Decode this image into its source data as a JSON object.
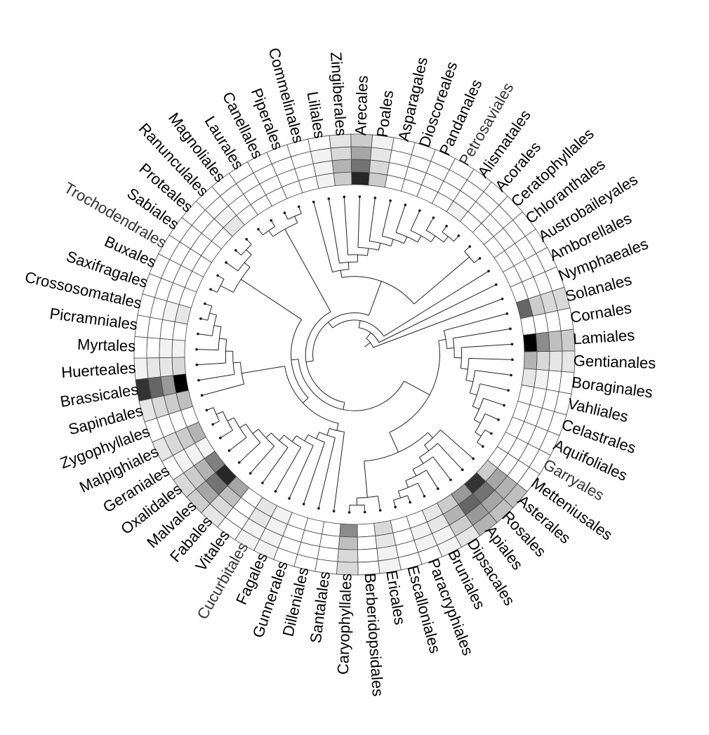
{
  "chart_data": {
    "type": "heatmap",
    "layout": "circular",
    "title": "",
    "rings": 4,
    "grid": true,
    "tips": [
      {
        "label": "Solanales",
        "style": "normal",
        "v": [
          0.6,
          0.2,
          0.15,
          0.15
        ]
      },
      {
        "label": "Cornales",
        "style": "normal",
        "v": [
          0.0,
          0.0,
          0.0,
          0.0
        ]
      },
      {
        "label": "Lamiales",
        "style": "normal",
        "v": [
          1.0,
          0.45,
          0.25,
          0.2
        ]
      },
      {
        "label": "Gentianales",
        "style": "normal",
        "v": [
          0.3,
          0.15,
          0.1,
          0.1
        ]
      },
      {
        "label": "Boraginales",
        "style": "normal",
        "v": [
          0.1,
          0.05,
          0.0,
          0.0
        ]
      },
      {
        "label": "Vahliales",
        "style": "normal",
        "v": [
          0.0,
          0.0,
          0.0,
          0.0
        ]
      },
      {
        "label": "Celastrales",
        "style": "normal",
        "v": [
          0.0,
          0.0,
          0.0,
          0.0
        ]
      },
      {
        "label": "Aquifoliales",
        "style": "normal",
        "v": [
          0.0,
          0.0,
          0.0,
          0.0
        ]
      },
      {
        "label": "Garryales",
        "style": "light",
        "v": [
          0.0,
          0.0,
          0.0,
          0.0
        ]
      },
      {
        "label": "Metteniusales",
        "style": "normal",
        "v": [
          0.0,
          0.0,
          0.0,
          0.0
        ]
      },
      {
        "label": "Asterales",
        "style": "normal",
        "v": [
          0.2,
          0.35,
          0.3,
          0.25
        ]
      },
      {
        "label": "Rosales",
        "style": "normal",
        "v": [
          0.8,
          0.55,
          0.35,
          0.25
        ]
      },
      {
        "label": "Apiales",
        "style": "normal",
        "v": [
          0.4,
          0.6,
          0.4,
          0.3
        ]
      },
      {
        "label": "Dipsacales",
        "style": "normal",
        "v": [
          0.2,
          0.3,
          0.2,
          0.1
        ]
      },
      {
        "label": "Bruniales",
        "style": "normal",
        "v": [
          0.1,
          0.1,
          0.05,
          0.05
        ]
      },
      {
        "label": "Paracryphiales",
        "style": "normal",
        "v": [
          0.0,
          0.05,
          0.05,
          0.0
        ]
      },
      {
        "label": "Escalloniales",
        "style": "normal",
        "v": [
          0.0,
          0.0,
          0.0,
          0.0
        ]
      },
      {
        "label": "Ericales",
        "style": "normal",
        "v": [
          0.15,
          0.1,
          0.05,
          0.05
        ]
      },
      {
        "label": "Berberidopsidales",
        "style": "normal",
        "v": [
          0.0,
          0.0,
          0.0,
          0.0
        ]
      },
      {
        "label": "Caryophyllales",
        "style": "normal",
        "v": [
          0.45,
          0.25,
          0.15,
          0.15
        ]
      },
      {
        "label": "Santalales",
        "style": "normal",
        "v": [
          0.0,
          0.0,
          0.0,
          0.0
        ]
      },
      {
        "label": "Dilleniales",
        "style": "normal",
        "v": [
          0.0,
          0.0,
          0.0,
          0.0
        ]
      },
      {
        "label": "Gunnerales",
        "style": "normal",
        "v": [
          0.0,
          0.0,
          0.0,
          0.0
        ]
      },
      {
        "label": "Fagales",
        "style": "normal",
        "v": [
          0.05,
          0.05,
          0.05,
          0.05
        ]
      },
      {
        "label": "Cucurbitales",
        "style": "light",
        "v": [
          0.1,
          0.1,
          0.05,
          0.05
        ]
      },
      {
        "label": "Vitales",
        "style": "normal",
        "v": [
          0.0,
          0.0,
          0.0,
          0.0
        ]
      },
      {
        "label": "Fabales",
        "style": "normal",
        "v": [
          0.35,
          0.25,
          0.15,
          0.1
        ]
      },
      {
        "label": "Malvales",
        "style": "normal",
        "v": [
          0.85,
          0.55,
          0.35,
          0.2
        ]
      },
      {
        "label": "Oxalidales",
        "style": "normal",
        "v": [
          0.5,
          0.3,
          0.2,
          0.15
        ]
      },
      {
        "label": "Geraniales",
        "style": "normal",
        "v": [
          0.05,
          0.05,
          0.05,
          0.0
        ]
      },
      {
        "label": "Malpighiales",
        "style": "normal",
        "v": [
          0.3,
          0.2,
          0.15,
          0.1
        ]
      },
      {
        "label": "Zygophyllales",
        "style": "normal",
        "v": [
          0.0,
          0.0,
          0.0,
          0.0
        ]
      },
      {
        "label": "Sapindales",
        "style": "normal",
        "v": [
          0.25,
          0.2,
          0.15,
          0.1
        ]
      },
      {
        "label": "Brassicales",
        "style": "normal",
        "v": [
          1.0,
          0.4,
          0.6,
          0.8
        ]
      },
      {
        "label": "Huerteales",
        "style": "normal",
        "v": [
          0.15,
          0.1,
          0.1,
          0.05
        ]
      },
      {
        "label": "Myrtales",
        "style": "normal",
        "v": [
          0.05,
          0.05,
          0.0,
          0.0
        ]
      },
      {
        "label": "Picramniales",
        "style": "normal",
        "v": [
          0.0,
          0.0,
          0.0,
          0.0
        ]
      },
      {
        "label": "Crossosomatales",
        "style": "normal",
        "v": [
          0.1,
          0.05,
          0.0,
          0.0
        ]
      },
      {
        "label": "Saxifragales",
        "style": "normal",
        "v": [
          0.0,
          0.0,
          0.0,
          0.0
        ]
      },
      {
        "label": "Buxales",
        "style": "normal",
        "v": [
          0.0,
          0.0,
          0.0,
          0.0
        ]
      },
      {
        "label": "Trochodendrales",
        "style": "light",
        "v": [
          0.0,
          0.0,
          0.0,
          0.0
        ]
      },
      {
        "label": "Sabiales",
        "style": "normal",
        "v": [
          0.0,
          0.0,
          0.0,
          0.0
        ]
      },
      {
        "label": "Proteales",
        "style": "normal",
        "v": [
          0.0,
          0.0,
          0.0,
          0.0
        ]
      },
      {
        "label": "Ranunculales",
        "style": "normal",
        "v": [
          0.1,
          0.05,
          0.0,
          0.0
        ]
      },
      {
        "label": "Magnoliales",
        "style": "normal",
        "v": [
          0.0,
          0.0,
          0.0,
          0.0
        ]
      },
      {
        "label": "Laurales",
        "style": "normal",
        "v": [
          0.0,
          0.0,
          0.0,
          0.0
        ]
      },
      {
        "label": "Canellales",
        "style": "normal",
        "v": [
          0.0,
          0.0,
          0.0,
          0.0
        ]
      },
      {
        "label": "Piperales",
        "style": "normal",
        "v": [
          0.0,
          0.0,
          0.0,
          0.0
        ]
      },
      {
        "label": "Commelinales",
        "style": "normal",
        "v": [
          0.0,
          0.0,
          0.0,
          0.0
        ]
      },
      {
        "label": "Liliales",
        "style": "normal",
        "v": [
          0.05,
          0.05,
          0.05,
          0.0
        ]
      },
      {
        "label": "Zingiberales",
        "style": "normal",
        "v": [
          0.2,
          0.3,
          0.15,
          0.1
        ]
      },
      {
        "label": "Arecales",
        "style": "normal",
        "v": [
          0.85,
          0.55,
          0.35,
          0.2
        ]
      },
      {
        "label": "Poales",
        "style": "normal",
        "v": [
          0.2,
          0.15,
          0.1,
          0.05
        ]
      },
      {
        "label": "Asparagales",
        "style": "normal",
        "v": [
          0.0,
          0.0,
          0.0,
          0.0
        ]
      },
      {
        "label": "Dioscoreales",
        "style": "normal",
        "v": [
          0.0,
          0.0,
          0.0,
          0.0
        ]
      },
      {
        "label": "Pandanales",
        "style": "normal",
        "v": [
          0.0,
          0.0,
          0.0,
          0.0
        ]
      },
      {
        "label": "Petrosaviales",
        "style": "light",
        "v": [
          0.0,
          0.0,
          0.0,
          0.0
        ]
      },
      {
        "label": "Alismatales",
        "style": "normal",
        "v": [
          0.05,
          0.0,
          0.0,
          0.0
        ]
      },
      {
        "label": "Acorales",
        "style": "normal",
        "v": [
          0.0,
          0.0,
          0.0,
          0.0
        ]
      },
      {
        "label": "Ceratophyllales",
        "style": "normal",
        "v": [
          0.0,
          0.0,
          0.0,
          0.0
        ]
      },
      {
        "label": "Chloranthales",
        "style": "normal",
        "v": [
          0.0,
          0.0,
          0.0,
          0.0
        ]
      },
      {
        "label": "Austrobaileyales",
        "style": "normal",
        "v": [
          0.0,
          0.0,
          0.0,
          0.0
        ]
      },
      {
        "label": "Amborellales",
        "style": "normal",
        "v": [
          0.0,
          0.0,
          0.0,
          0.0
        ]
      },
      {
        "label": "Nymphaeales",
        "style": "normal",
        "v": [
          0.0,
          0.0,
          0.0,
          0.0
        ]
      }
    ]
  },
  "colors": {
    "label_normal": "#000000",
    "label_light": "#333333",
    "cell_low": "#ffffff",
    "cell_high": "#000000",
    "grid": "#444444",
    "tree": "#222222"
  }
}
